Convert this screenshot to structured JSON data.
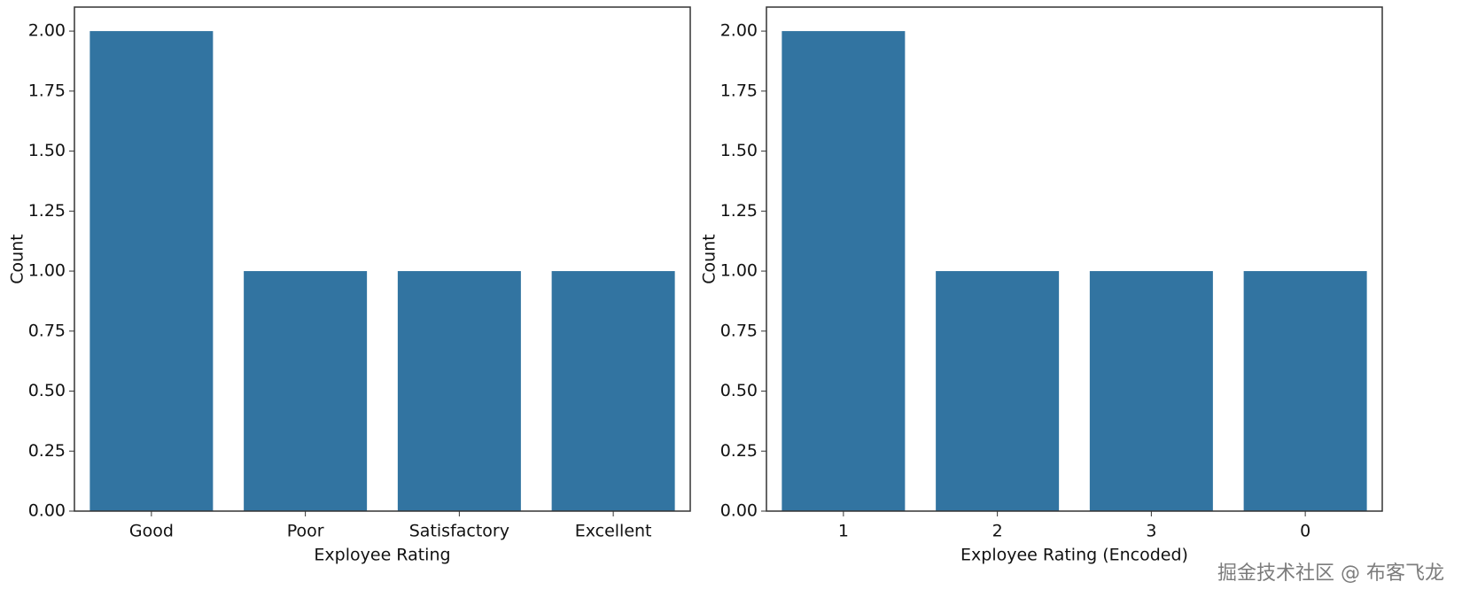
{
  "chart_data": [
    {
      "type": "bar",
      "categories": [
        "Good",
        "Poor",
        "Satisfactory",
        "Excellent"
      ],
      "values": [
        2,
        1,
        1,
        1
      ],
      "color": "#3274a1",
      "xlabel": "Exployee Rating",
      "ylabel": "Count",
      "ylim": [
        0,
        2.1
      ],
      "yticks": [
        {
          "value": 0,
          "label": "0.00"
        },
        {
          "value": 0.25,
          "label": "0.25"
        },
        {
          "value": 0.5,
          "label": "0.50"
        },
        {
          "value": 0.75,
          "label": "0.75"
        },
        {
          "value": 1,
          "label": "1.00"
        },
        {
          "value": 1.25,
          "label": "1.25"
        },
        {
          "value": 1.5,
          "label": "1.50"
        },
        {
          "value": 1.75,
          "label": "1.75"
        },
        {
          "value": 2,
          "label": "2.00"
        }
      ]
    },
    {
      "type": "bar",
      "categories": [
        "1",
        "2",
        "3",
        "0"
      ],
      "values": [
        2,
        1,
        1,
        1
      ],
      "color": "#3274a1",
      "xlabel": "Exployee Rating (Encoded)",
      "ylabel": "Count",
      "ylim": [
        0,
        2.1
      ],
      "yticks": [
        {
          "value": 0,
          "label": "0.00"
        },
        {
          "value": 0.25,
          "label": "0.25"
        },
        {
          "value": 0.5,
          "label": "0.50"
        },
        {
          "value": 0.75,
          "label": "0.75"
        },
        {
          "value": 1,
          "label": "1.00"
        },
        {
          "value": 1.25,
          "label": "1.25"
        },
        {
          "value": 1.5,
          "label": "1.50"
        },
        {
          "value": 1.75,
          "label": "1.75"
        },
        {
          "value": 2,
          "label": "2.00"
        }
      ]
    }
  ],
  "watermark": "掘金技术社区 @ 布客飞龙"
}
